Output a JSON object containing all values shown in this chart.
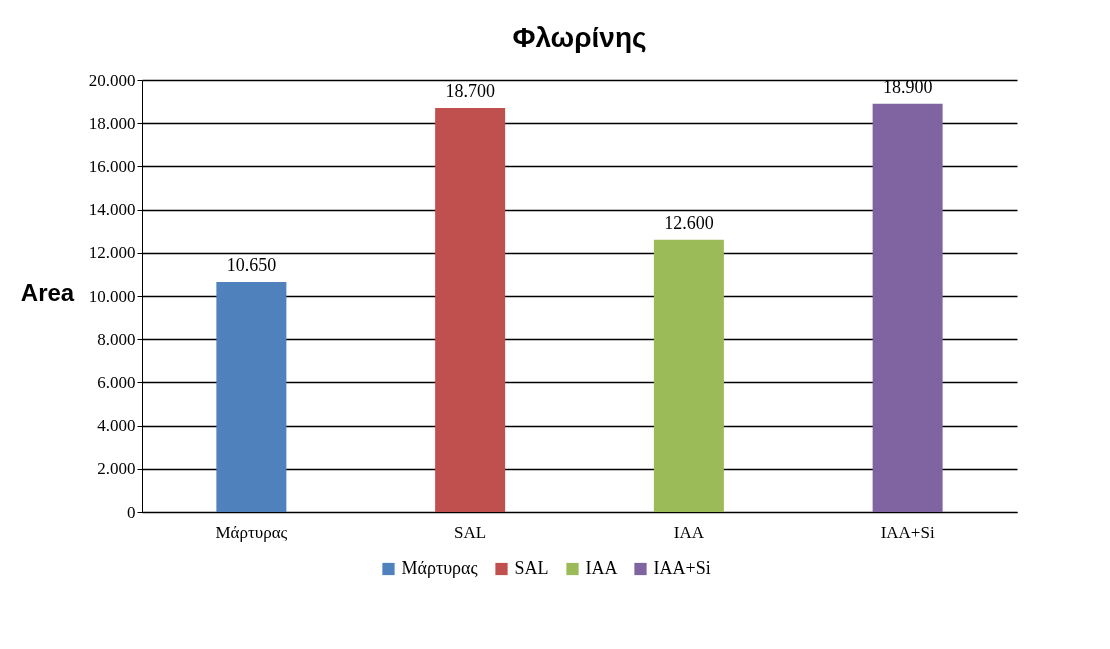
{
  "chart_data": {
    "type": "bar",
    "title": "Φλωρίνης",
    "ylabel": "Area",
    "categories": [
      "Μάρτυρας",
      "SAL",
      "IAA",
      "IAA+Si"
    ],
    "series": [
      {
        "name": "Μάρτυρας",
        "color": "#4f81bd",
        "values": [
          10650,
          null,
          null,
          null
        ],
        "value_labels": [
          "10.650",
          null,
          null,
          null
        ]
      },
      {
        "name": "SAL",
        "color": "#c0504d",
        "values": [
          null,
          18700,
          null,
          null
        ],
        "value_labels": [
          null,
          "18.700",
          null,
          null
        ]
      },
      {
        "name": "IAA",
        "color": "#9bbb59",
        "values": [
          null,
          null,
          12600,
          null
        ],
        "value_labels": [
          null,
          null,
          "12.600",
          null
        ]
      },
      {
        "name": "IAA+Si",
        "color": "#8064a2",
        "values": [
          null,
          null,
          null,
          18900
        ],
        "value_labels": [
          null,
          null,
          null,
          "18.900"
        ]
      }
    ],
    "ylim": [
      0,
      20000
    ],
    "yticks": [
      {
        "value": 0,
        "label": "0"
      },
      {
        "value": 2000,
        "label": "2.000"
      },
      {
        "value": 4000,
        "label": "4.000"
      },
      {
        "value": 6000,
        "label": "6.000"
      },
      {
        "value": 8000,
        "label": "8.000"
      },
      {
        "value": 10000,
        "label": "10.000"
      },
      {
        "value": 12000,
        "label": "12.000"
      },
      {
        "value": 14000,
        "label": "14.000"
      },
      {
        "value": 16000,
        "label": "16.000"
      },
      {
        "value": 18000,
        "label": "18.000"
      },
      {
        "value": 20000,
        "label": "20.000"
      }
    ],
    "grid": "y",
    "legend": "bottom"
  }
}
